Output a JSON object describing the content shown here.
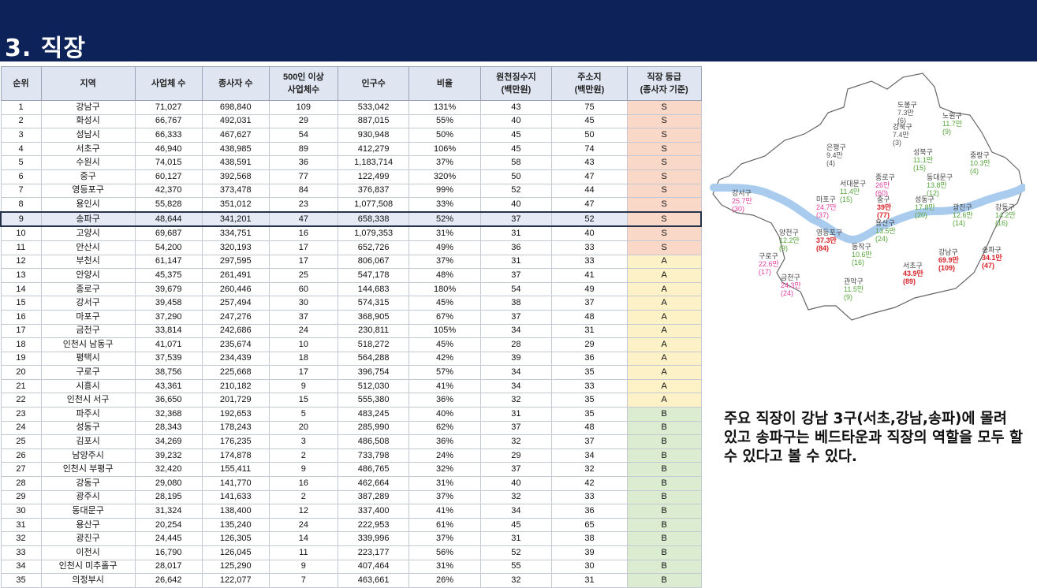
{
  "title": "3. 직장",
  "table": {
    "headers": [
      "순위",
      "지역",
      "사업체 수",
      "종사자 수",
      "500인 이상\n사업체수",
      "인구수",
      "비율",
      "원천징수지\n(백만원)",
      "주소지\n(백만원)",
      "직장 등급\n(종사자 기준)"
    ],
    "highlight_rank": "9",
    "rows": [
      [
        "1",
        "강남구",
        "71,027",
        "698,840",
        "109",
        "533,042",
        "131%",
        "43",
        "75",
        "S"
      ],
      [
        "2",
        "화성시",
        "66,767",
        "492,031",
        "29",
        "887,015",
        "55%",
        "40",
        "45",
        "S"
      ],
      [
        "3",
        "성남시",
        "66,333",
        "467,627",
        "54",
        "930,948",
        "50%",
        "45",
        "50",
        "S"
      ],
      [
        "4",
        "서초구",
        "46,940",
        "438,985",
        "89",
        "412,279",
        "106%",
        "45",
        "74",
        "S"
      ],
      [
        "5",
        "수원시",
        "74,015",
        "438,591",
        "36",
        "1,183,714",
        "37%",
        "58",
        "43",
        "S"
      ],
      [
        "6",
        "중구",
        "60,127",
        "392,568",
        "77",
        "122,499",
        "320%",
        "50",
        "47",
        "S"
      ],
      [
        "7",
        "영등포구",
        "42,370",
        "373,478",
        "84",
        "376,837",
        "99%",
        "52",
        "44",
        "S"
      ],
      [
        "8",
        "용인시",
        "55,828",
        "351,012",
        "23",
        "1,077,508",
        "33%",
        "40",
        "47",
        "S"
      ],
      [
        "9",
        "송파구",
        "48,644",
        "341,201",
        "47",
        "658,338",
        "52%",
        "37",
        "52",
        "S"
      ],
      [
        "10",
        "고양시",
        "69,687",
        "334,751",
        "16",
        "1,079,353",
        "31%",
        "31",
        "40",
        "S"
      ],
      [
        "11",
        "안산시",
        "54,200",
        "320,193",
        "17",
        "652,726",
        "49%",
        "36",
        "33",
        "S"
      ],
      [
        "12",
        "부천시",
        "61,147",
        "297,595",
        "17",
        "806,067",
        "37%",
        "31",
        "33",
        "A"
      ],
      [
        "13",
        "안양시",
        "45,375",
        "261,491",
        "25",
        "547,178",
        "48%",
        "37",
        "41",
        "A"
      ],
      [
        "14",
        "종로구",
        "39,679",
        "260,446",
        "60",
        "144,683",
        "180%",
        "54",
        "49",
        "A"
      ],
      [
        "15",
        "강서구",
        "39,458",
        "257,494",
        "30",
        "574,315",
        "45%",
        "38",
        "37",
        "A"
      ],
      [
        "16",
        "마포구",
        "37,290",
        "247,276",
        "37",
        "368,905",
        "67%",
        "37",
        "48",
        "A"
      ],
      [
        "17",
        "금천구",
        "33,814",
        "242,686",
        "24",
        "230,811",
        "105%",
        "34",
        "31",
        "A"
      ],
      [
        "18",
        "인천시 남동구",
        "41,071",
        "235,674",
        "10",
        "518,272",
        "45%",
        "28",
        "29",
        "A"
      ],
      [
        "19",
        "평택시",
        "37,539",
        "234,439",
        "18",
        "564,288",
        "42%",
        "39",
        "36",
        "A"
      ],
      [
        "20",
        "구로구",
        "38,756",
        "225,668",
        "17",
        "396,754",
        "57%",
        "34",
        "35",
        "A"
      ],
      [
        "21",
        "시흥시",
        "43,361",
        "210,182",
        "9",
        "512,030",
        "41%",
        "34",
        "33",
        "A"
      ],
      [
        "22",
        "인천시 서구",
        "36,650",
        "201,729",
        "15",
        "555,380",
        "36%",
        "32",
        "35",
        "A"
      ],
      [
        "23",
        "파주시",
        "32,368",
        "192,653",
        "5",
        "483,245",
        "40%",
        "31",
        "35",
        "B"
      ],
      [
        "24",
        "성동구",
        "28,343",
        "178,243",
        "20",
        "285,990",
        "62%",
        "37",
        "48",
        "B"
      ],
      [
        "25",
        "김포시",
        "34,269",
        "176,235",
        "3",
        "486,508",
        "36%",
        "32",
        "37",
        "B"
      ],
      [
        "26",
        "남양주시",
        "39,232",
        "174,878",
        "2",
        "733,798",
        "24%",
        "29",
        "34",
        "B"
      ],
      [
        "27",
        "인천시 부평구",
        "32,420",
        "155,411",
        "9",
        "486,765",
        "32%",
        "37",
        "32",
        "B"
      ],
      [
        "28",
        "강동구",
        "29,080",
        "141,770",
        "16",
        "462,664",
        "31%",
        "40",
        "42",
        "B"
      ],
      [
        "29",
        "광주시",
        "28,195",
        "141,633",
        "2",
        "387,289",
        "37%",
        "32",
        "33",
        "B"
      ],
      [
        "30",
        "동대문구",
        "31,324",
        "138,400",
        "12",
        "337,400",
        "41%",
        "34",
        "36",
        "B"
      ],
      [
        "31",
        "용산구",
        "20,254",
        "135,240",
        "24",
        "222,953",
        "61%",
        "45",
        "65",
        "B"
      ],
      [
        "32",
        "광진구",
        "24,445",
        "126,305",
        "14",
        "339,996",
        "37%",
        "31",
        "38",
        "B"
      ],
      [
        "33",
        "이천시",
        "16,790",
        "126,045",
        "11",
        "223,177",
        "56%",
        "52",
        "39",
        "B"
      ],
      [
        "34",
        "인천시 미추홀구",
        "28,017",
        "125,290",
        "9",
        "407,464",
        "31%",
        "55",
        "30",
        "B"
      ],
      [
        "35",
        "의정부시",
        "26,642",
        "122,077",
        "7",
        "463,661",
        "26%",
        "32",
        "31",
        "B"
      ]
    ]
  },
  "map_labels": [
    {
      "name": "도봉구",
      "value": "7.3만",
      "count": "(6)",
      "tier": "gray"
    },
    {
      "name": "노원구",
      "value": "11.7만",
      "count": "(9)",
      "tier": "green"
    },
    {
      "name": "강북구",
      "value": "7.4만",
      "count": "(3)",
      "tier": "gray"
    },
    {
      "name": "은평구",
      "value": "9.4만",
      "count": "(4)",
      "tier": "gray"
    },
    {
      "name": "성북구",
      "value": "11.1만",
      "count": "(15)",
      "tier": "green"
    },
    {
      "name": "중랑구",
      "value": "10.3만",
      "count": "(4)",
      "tier": "green"
    },
    {
      "name": "종로구",
      "value": "26만",
      "count": "(60)",
      "tier": "pink"
    },
    {
      "name": "동대문구",
      "value": "13.8만",
      "count": "(12)",
      "tier": "green"
    },
    {
      "name": "서대문구",
      "value": "11.4만",
      "count": "(15)",
      "tier": "green"
    },
    {
      "name": "강서구",
      "value": "25.7만",
      "count": "(30)",
      "tier": "pink"
    },
    {
      "name": "마포구",
      "value": "24.7만",
      "count": "(37)",
      "tier": "pink"
    },
    {
      "name": "중구",
      "value": "39만",
      "count": "(77)",
      "tier": "red"
    },
    {
      "name": "성동구",
      "value": "17.8만",
      "count": "(20)",
      "tier": "green"
    },
    {
      "name": "광진구",
      "value": "12.6만",
      "count": "(14)",
      "tier": "green"
    },
    {
      "name": "강동구",
      "value": "14.2만",
      "count": "(16)",
      "tier": "green"
    },
    {
      "name": "용산구",
      "value": "13.5만",
      "count": "(24)",
      "tier": "green"
    },
    {
      "name": "양천구",
      "value": "12.2만",
      "count": "(9)",
      "tier": "green"
    },
    {
      "name": "영등포구",
      "value": "37.3만",
      "count": "(84)",
      "tier": "red"
    },
    {
      "name": "동작구",
      "value": "10.6만",
      "count": "(16)",
      "tier": "green"
    },
    {
      "name": "구로구",
      "value": "22.6만",
      "count": "(17)",
      "tier": "pink"
    },
    {
      "name": "송파구",
      "value": "34.1만",
      "count": "(47)",
      "tier": "red"
    },
    {
      "name": "강남구",
      "value": "69.9만",
      "count": "(109)",
      "tier": "red"
    },
    {
      "name": "서초구",
      "value": "43.9만",
      "count": "(89)",
      "tier": "red"
    },
    {
      "name": "금천구",
      "value": "24.3만",
      "count": "(24)",
      "tier": "pink"
    },
    {
      "name": "관악구",
      "value": "11.5만",
      "count": "(9)",
      "tier": "green"
    }
  ],
  "colors": {
    "gray": "#555555",
    "green": "#55a53a",
    "pink": "#e23fa0",
    "red": "#d8232a",
    "river": "#a9ccee",
    "header_bar": "#0c2259"
  },
  "caption": "주요 직장이 강남 3구(서초,강남,송파)에 몰려 있고 송파구는 베드타운과 직장의 역할을 모두 할 수 있다고 볼 수 있다."
}
